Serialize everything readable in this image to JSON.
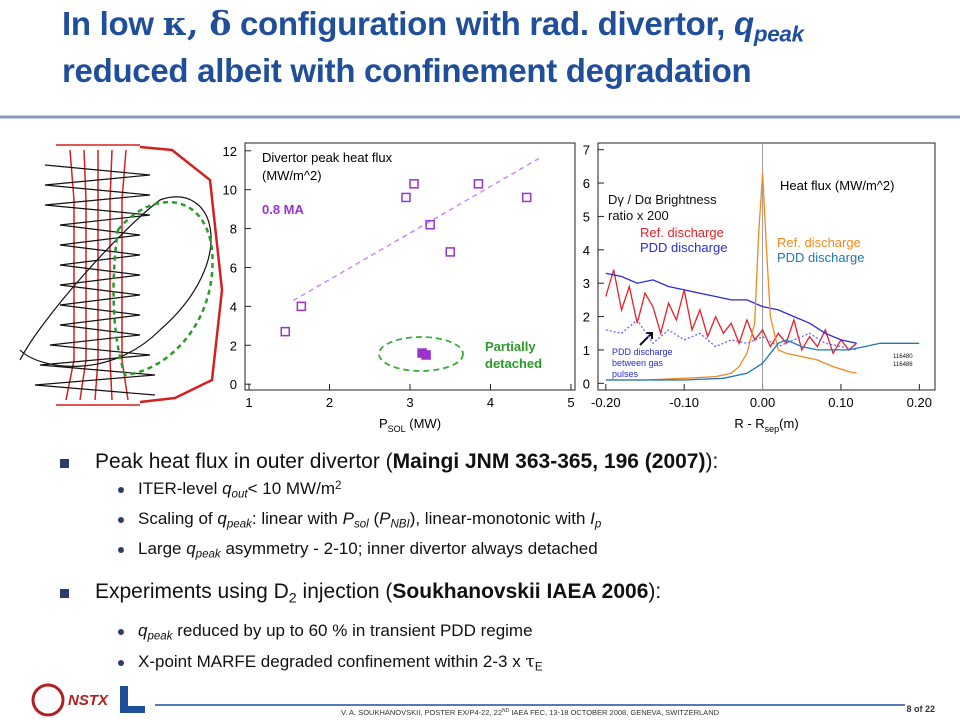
{
  "title": {
    "line1": [
      "In low ",
      "κ, δ",
      " configuration with rad. divertor, ",
      "q",
      "peak"
    ],
    "line2": "reduced albeit with confinement degradation"
  },
  "chart_data": [
    {
      "type": "scatter",
      "title": [
        "Divertor peak heat flux",
        "(MW/m^2)"
      ],
      "annotations": [
        "0.8 MA",
        "Partially",
        "detached"
      ],
      "x_label": [
        "P",
        "SOL",
        " (MW)"
      ],
      "xlim": [
        0.95,
        5.05
      ],
      "xticks": [
        1,
        2,
        3,
        4,
        5
      ],
      "ylim": [
        -0.3,
        12.4
      ],
      "yticks": [
        0,
        2,
        4,
        6,
        8,
        10,
        12
      ],
      "series": [
        {
          "color": "#9933cc",
          "filled": false,
          "x": [
            1.45,
            1.65,
            2.95,
            3.05,
            3.25,
            3.5,
            3.85,
            4.45
          ],
          "values": [
            2.7,
            4.0,
            9.6,
            10.3,
            8.2,
            6.8,
            10.3,
            9.6
          ]
        },
        {
          "color": "#9933cc",
          "filled": true,
          "x": [
            3.15,
            3.2
          ],
          "values": [
            1.6,
            1.5
          ]
        }
      ],
      "trend": {
        "color": "#cc88ee",
        "x": [
          1.55,
          4.6
        ],
        "y": [
          4.3,
          11.6
        ]
      }
    },
    {
      "type": "line",
      "title": "Heat flux (MW/m^2)",
      "annotations": [
        "Dγ / Dα Brightness",
        "ratio x 200",
        "PDD discharge",
        "between gas",
        "pulses",
        "116480",
        "116486"
      ],
      "x_label": [
        "R - R",
        "sep",
        "(m)"
      ],
      "xlim": [
        -0.21,
        0.22
      ],
      "ylim": [
        -0.2,
        7.2
      ],
      "xticks": [
        {
          "value": -0.2,
          "label": "-0.20"
        },
        {
          "value": -0.1,
          "label": "-0.10"
        },
        {
          "value": 0,
          "label": "0.00"
        },
        {
          "value": 0.1,
          "label": "0.10"
        },
        {
          "value": 0.2,
          "label": "0.20"
        }
      ],
      "yticks": [
        0,
        1,
        2,
        3,
        4,
        5,
        6,
        7
      ],
      "vline": 0,
      "series": [
        {
          "name": "Ref. discharge",
          "color": "#e8202a",
          "x": [
            -0.2,
            -0.19,
            -0.18,
            -0.17,
            -0.16,
            -0.15,
            -0.14,
            -0.13,
            -0.12,
            -0.11,
            -0.1,
            -0.09,
            -0.08,
            -0.07,
            -0.06,
            -0.05,
            -0.04,
            -0.03,
            -0.02,
            -0.01,
            0,
            0.01,
            0.02,
            0.03,
            0.04,
            0.05,
            0.06,
            0.07,
            0.08,
            0.09,
            0.1,
            0.11,
            0.12
          ],
          "values": [
            2.6,
            3.4,
            2.2,
            2.9,
            1.8,
            2.7,
            2.3,
            1.5,
            2.4,
            1.9,
            2.8,
            1.6,
            2.2,
            1.4,
            2.0,
            1.5,
            1.8,
            1.2,
            1.9,
            1.3,
            1.6,
            1.1,
            1.5,
            1.2,
            1.9,
            1.0,
            1.4,
            1.1,
            1.6,
            0.9,
            1.3,
            1.0,
            1.2
          ]
        },
        {
          "name": "PDD discharge",
          "color": "#2a2ad8",
          "x": [
            -0.2,
            -0.18,
            -0.16,
            -0.14,
            -0.12,
            -0.1,
            -0.08,
            -0.06,
            -0.04,
            -0.02,
            0,
            0.02,
            0.04,
            0.06,
            0.08,
            0.1,
            0.12
          ],
          "values": [
            3.3,
            3.2,
            3.0,
            3.1,
            2.9,
            2.8,
            2.7,
            2.6,
            2.5,
            2.5,
            2.3,
            2.2,
            2.0,
            1.8,
            1.5,
            1.3,
            1.2
          ]
        },
        {
          "name": "Ref. discharge",
          "color": "#f08a1c",
          "x": [
            -0.2,
            -0.15,
            -0.1,
            -0.06,
            -0.04,
            -0.03,
            -0.02,
            -0.01,
            -0.005,
            0,
            0.005,
            0.01,
            0.02,
            0.03,
            0.05,
            0.07,
            0.09,
            0.11,
            0.12
          ],
          "values": [
            0.1,
            0.1,
            0.15,
            0.2,
            0.3,
            0.5,
            0.9,
            1.8,
            4.5,
            6.3,
            4.0,
            2.0,
            1.0,
            0.9,
            0.8,
            0.7,
            0.5,
            0.35,
            0.3
          ]
        },
        {
          "name": "PDD discharge",
          "color": "#1f77b4",
          "x": [
            -0.2,
            -0.1,
            -0.05,
            -0.02,
            0,
            0.01,
            0.02,
            0.03,
            0.05,
            0.07,
            0.09,
            0.11,
            0.13,
            0.15,
            0.17,
            0.2
          ],
          "values": [
            0.1,
            0.1,
            0.15,
            0.3,
            0.6,
            0.9,
            1.2,
            1.3,
            1.1,
            1.0,
            1.0,
            1.0,
            1.1,
            1.2,
            1.2,
            1.2
          ]
        },
        {
          "color": "#6666ee",
          "dashed": true,
          "x": [
            -0.2,
            -0.18,
            -0.16,
            -0.14,
            -0.12,
            -0.1,
            -0.08,
            -0.06,
            -0.04,
            -0.02,
            0,
            0.02,
            0.04,
            0.06,
            0.08,
            0.1,
            0.12
          ],
          "values": [
            1.6,
            1.5,
            1.9,
            1.2,
            1.6,
            1.3,
            1.5,
            1.1,
            1.3,
            1.2,
            1.4,
            1.1,
            1.3,
            1.5,
            1.2,
            1.1,
            1.0
          ]
        }
      ]
    }
  ],
  "bullets": [
    {
      "text": [
        "Peak heat flux in outer divertor (",
        "Maingi JNM 363-365, 196 (2007)",
        "):"
      ],
      "items": [
        [
          "ITER-level ",
          "q",
          "out",
          "< 10 MW/m",
          "2"
        ],
        [
          "Scaling of ",
          "q",
          "peak",
          ": linear with ",
          "P",
          "sol",
          " (",
          "P",
          "NBI",
          "), linear-monotonic with ",
          "I",
          "p"
        ],
        [
          "Large ",
          "q",
          "peak",
          " asymmetry - 2-10; inner divertor always detached"
        ]
      ]
    },
    {
      "text": [
        "Experiments using D",
        "2",
        " injection (",
        "Soukhanovskii IAEA 2006",
        "):"
      ],
      "items": [
        [
          "q",
          "peak",
          " reduced by up to 60 % in transient PDD regime"
        ],
        [
          "X-point MARFE degraded confinement within 2-3 x ",
          "τ",
          "E"
        ]
      ]
    }
  ],
  "footer": {
    "logo": "NSTX",
    "credit": [
      "V. A. SOUKHANOVSKII, POSTER EX/P4-22, 22",
      "ND",
      " IAEA FEC, 13-18 OCTOBER 2008, GENEVA, SWITZERLAND"
    ],
    "page": "8 of 22"
  }
}
